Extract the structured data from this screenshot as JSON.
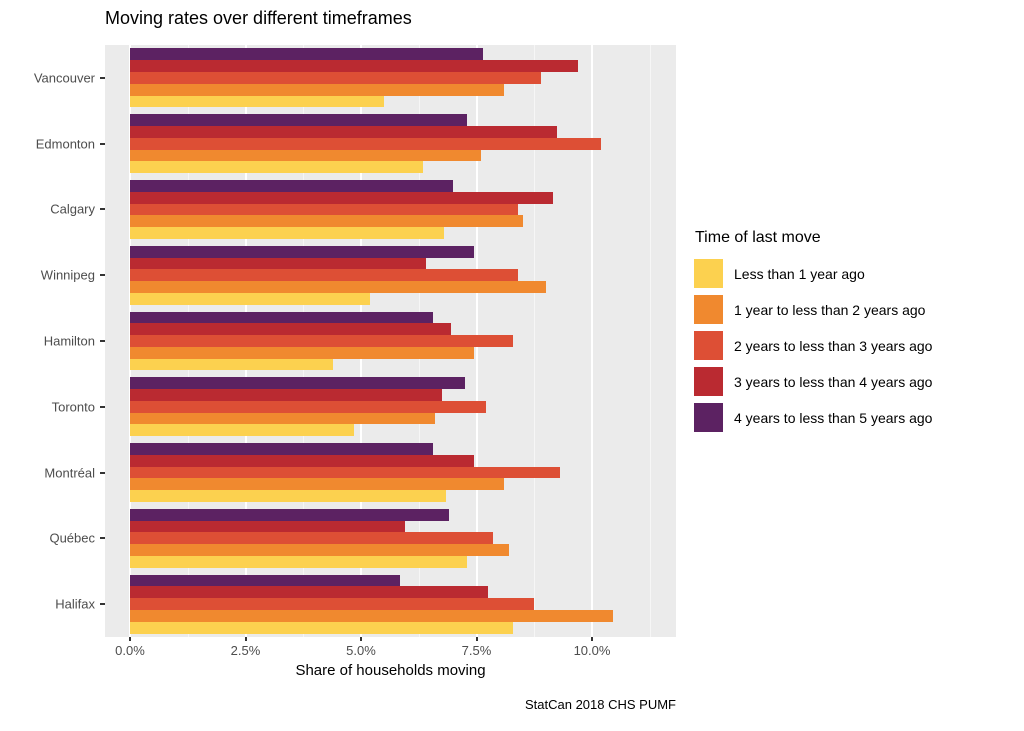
{
  "title": "Moving rates over different timeframes",
  "x_axis_title": "Share of households moving",
  "caption": "StatCan 2018 CHS PUMF",
  "legend": {
    "title": "Time of last move"
  },
  "colors": {
    "panel_background": "#EBEBEB",
    "gridline": "#FFFFFF",
    "tick_text": "#4D4D4D",
    "axis_text": "#000000"
  },
  "chart_data": {
    "type": "bar",
    "orientation": "horizontal",
    "title": "Moving rates over different timeframes",
    "xlabel": "Share of households moving",
    "ylabel": "",
    "caption": "StatCan 2018 CHS PUMF",
    "legend_title": "Time of last move",
    "legend_position": "right",
    "grid": true,
    "xlim": [
      -0.54,
      11.82
    ],
    "x_tick_values": [
      0,
      2.5,
      5,
      7.5,
      10
    ],
    "x_tick_labels": [
      "0.0%",
      "2.5%",
      "5.0%",
      "7.5%",
      "10.0%"
    ],
    "x_minor_tick_values": [
      1.25,
      3.75,
      6.25,
      8.75,
      11.25
    ],
    "categories": [
      "Vancouver",
      "Edmonton",
      "Calgary",
      "Winnipeg",
      "Hamilton",
      "Toronto",
      "Montréal",
      "Québec",
      "Halifax"
    ],
    "series": [
      {
        "name": "Less than 1 year ago",
        "color": "#FCD14F",
        "values": [
          5.5,
          6.35,
          6.8,
          5.2,
          4.4,
          4.85,
          6.85,
          7.3,
          8.3
        ]
      },
      {
        "name": "1 year to less than 2 years ago",
        "color": "#F0892F",
        "values": [
          8.1,
          7.6,
          8.5,
          9.0,
          7.45,
          6.6,
          8.1,
          8.2,
          10.45
        ]
      },
      {
        "name": "2 years to less than 3 years ago",
        "color": "#DD4F35",
        "values": [
          8.9,
          10.2,
          8.4,
          8.4,
          8.3,
          7.7,
          9.3,
          7.85,
          8.75
        ]
      },
      {
        "name": "3 years to less than 4 years ago",
        "color": "#BA2A31",
        "values": [
          9.7,
          9.25,
          9.15,
          6.4,
          6.95,
          6.75,
          7.45,
          5.95,
          7.75
        ]
      },
      {
        "name": "4 years to less than 5 years ago",
        "color": "#5C2262",
        "values": [
          7.65,
          7.3,
          7.0,
          7.45,
          6.55,
          7.25,
          6.55,
          6.9,
          5.85
        ]
      }
    ],
    "bar_order_top_to_bottom_within_group": "last legend entry on top"
  }
}
